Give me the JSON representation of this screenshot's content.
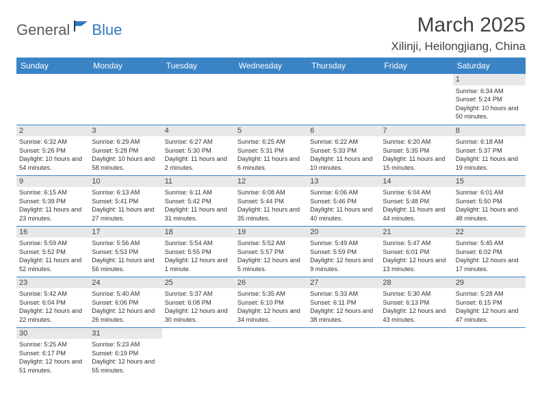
{
  "logo": {
    "general": "General",
    "blue": "Blue"
  },
  "title": "March 2025",
  "location": "Xilinji, Heilongjiang, China",
  "colors": {
    "header_bg": "#3a84c6",
    "header_text": "#ffffff",
    "divider": "#3a84c6",
    "daynum_bg": "#e8e8e8",
    "text": "#303030",
    "logo_gray": "#5a5a5a",
    "logo_blue": "#2f79bd"
  },
  "day_headers": [
    "Sunday",
    "Monday",
    "Tuesday",
    "Wednesday",
    "Thursday",
    "Friday",
    "Saturday"
  ],
  "weeks": [
    [
      null,
      null,
      null,
      null,
      null,
      null,
      {
        "n": "1",
        "sr": "6:34 AM",
        "ss": "5:24 PM",
        "dl": "10 hours and 50 minutes."
      }
    ],
    [
      {
        "n": "2",
        "sr": "6:32 AM",
        "ss": "5:26 PM",
        "dl": "10 hours and 54 minutes."
      },
      {
        "n": "3",
        "sr": "6:29 AM",
        "ss": "5:28 PM",
        "dl": "10 hours and 58 minutes."
      },
      {
        "n": "4",
        "sr": "6:27 AM",
        "ss": "5:30 PM",
        "dl": "11 hours and 2 minutes."
      },
      {
        "n": "5",
        "sr": "6:25 AM",
        "ss": "5:31 PM",
        "dl": "11 hours and 6 minutes."
      },
      {
        "n": "6",
        "sr": "6:22 AM",
        "ss": "5:33 PM",
        "dl": "11 hours and 10 minutes."
      },
      {
        "n": "7",
        "sr": "6:20 AM",
        "ss": "5:35 PM",
        "dl": "11 hours and 15 minutes."
      },
      {
        "n": "8",
        "sr": "6:18 AM",
        "ss": "5:37 PM",
        "dl": "11 hours and 19 minutes."
      }
    ],
    [
      {
        "n": "9",
        "sr": "6:15 AM",
        "ss": "5:39 PM",
        "dl": "11 hours and 23 minutes."
      },
      {
        "n": "10",
        "sr": "6:13 AM",
        "ss": "5:41 PM",
        "dl": "11 hours and 27 minutes."
      },
      {
        "n": "11",
        "sr": "6:11 AM",
        "ss": "5:42 PM",
        "dl": "11 hours and 31 minutes."
      },
      {
        "n": "12",
        "sr": "6:08 AM",
        "ss": "5:44 PM",
        "dl": "11 hours and 35 minutes."
      },
      {
        "n": "13",
        "sr": "6:06 AM",
        "ss": "5:46 PM",
        "dl": "11 hours and 40 minutes."
      },
      {
        "n": "14",
        "sr": "6:04 AM",
        "ss": "5:48 PM",
        "dl": "11 hours and 44 minutes."
      },
      {
        "n": "15",
        "sr": "6:01 AM",
        "ss": "5:50 PM",
        "dl": "11 hours and 48 minutes."
      }
    ],
    [
      {
        "n": "16",
        "sr": "5:59 AM",
        "ss": "5:52 PM",
        "dl": "11 hours and 52 minutes."
      },
      {
        "n": "17",
        "sr": "5:56 AM",
        "ss": "5:53 PM",
        "dl": "11 hours and 56 minutes."
      },
      {
        "n": "18",
        "sr": "5:54 AM",
        "ss": "5:55 PM",
        "dl": "12 hours and 1 minute."
      },
      {
        "n": "19",
        "sr": "5:52 AM",
        "ss": "5:57 PM",
        "dl": "12 hours and 5 minutes."
      },
      {
        "n": "20",
        "sr": "5:49 AM",
        "ss": "5:59 PM",
        "dl": "12 hours and 9 minutes."
      },
      {
        "n": "21",
        "sr": "5:47 AM",
        "ss": "6:01 PM",
        "dl": "12 hours and 13 minutes."
      },
      {
        "n": "22",
        "sr": "5:45 AM",
        "ss": "6:02 PM",
        "dl": "12 hours and 17 minutes."
      }
    ],
    [
      {
        "n": "23",
        "sr": "5:42 AM",
        "ss": "6:04 PM",
        "dl": "12 hours and 22 minutes."
      },
      {
        "n": "24",
        "sr": "5:40 AM",
        "ss": "6:06 PM",
        "dl": "12 hours and 26 minutes."
      },
      {
        "n": "25",
        "sr": "5:37 AM",
        "ss": "6:08 PM",
        "dl": "12 hours and 30 minutes."
      },
      {
        "n": "26",
        "sr": "5:35 AM",
        "ss": "6:10 PM",
        "dl": "12 hours and 34 minutes."
      },
      {
        "n": "27",
        "sr": "5:33 AM",
        "ss": "6:11 PM",
        "dl": "12 hours and 38 minutes."
      },
      {
        "n": "28",
        "sr": "5:30 AM",
        "ss": "6:13 PM",
        "dl": "12 hours and 43 minutes."
      },
      {
        "n": "29",
        "sr": "5:28 AM",
        "ss": "6:15 PM",
        "dl": "12 hours and 47 minutes."
      }
    ],
    [
      {
        "n": "30",
        "sr": "5:25 AM",
        "ss": "6:17 PM",
        "dl": "12 hours and 51 minutes."
      },
      {
        "n": "31",
        "sr": "5:23 AM",
        "ss": "6:19 PM",
        "dl": "12 hours and 55 minutes."
      },
      null,
      null,
      null,
      null,
      null
    ]
  ],
  "labels": {
    "sunrise": "Sunrise: ",
    "sunset": "Sunset: ",
    "daylight": "Daylight: "
  }
}
